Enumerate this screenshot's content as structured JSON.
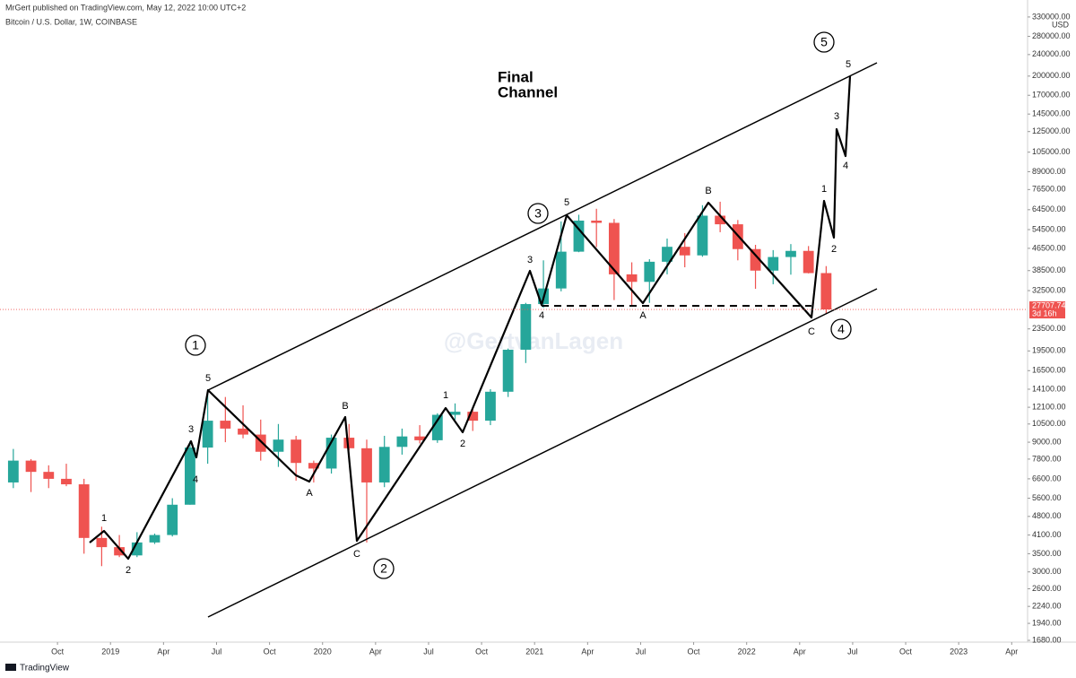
{
  "header": {
    "publisher": "MrGert published on TradingView.com, May 12, 2022 10:00 UTC+2",
    "symbol": "Bitcoin / U.S. Dollar, 1W, COINBASE"
  },
  "chart_data": {
    "type": "candlestick",
    "x": [
      "2018-07",
      "2018-08",
      "2018-09",
      "2018-10",
      "2018-11",
      "2018-12",
      "2019-01",
      "2019-02",
      "2019-03",
      "2019-04",
      "2019-05",
      "2019-06",
      "2019-07",
      "2019-08",
      "2019-09",
      "2019-10",
      "2019-11",
      "2019-12",
      "2020-01",
      "2020-02",
      "2020-03",
      "2020-04",
      "2020-05",
      "2020-06",
      "2020-07",
      "2020-08",
      "2020-09",
      "2020-10",
      "2020-11",
      "2020-12",
      "2021-01",
      "2021-02",
      "2021-03",
      "2021-04",
      "2021-05",
      "2021-06",
      "2021-07",
      "2021-08",
      "2021-09",
      "2021-10",
      "2021-11",
      "2021-12",
      "2022-01",
      "2022-02",
      "2022-03",
      "2022-04",
      "2022-05"
    ],
    "open": [
      6400,
      7700,
      7000,
      6600,
      6300,
      4000,
      3700,
      3450,
      3850,
      4100,
      5300,
      8600,
      10800,
      10100,
      9600,
      8300,
      9200,
      7550,
      7200,
      9350,
      8550,
      6400,
      8650,
      9450,
      9150,
      11350,
      11650,
      10800,
      13800,
      19700,
      29000,
      33100,
      45200,
      58800,
      57700,
      37300,
      35000,
      41500,
      47100,
      43800,
      61300,
      57000,
      46200,
      38500,
      43200,
      45500,
      37700
    ],
    "high": [
      8500,
      7800,
      7400,
      7500,
      6600,
      4400,
      4100,
      4200,
      4150,
      5600,
      9100,
      13900,
      13200,
      12300,
      10900,
      10500,
      9500,
      7700,
      9600,
      10500,
      9200,
      9500,
      10100,
      10400,
      11500,
      12500,
      12100,
      14100,
      19900,
      29300,
      42000,
      58400,
      61800,
      65000,
      59600,
      41300,
      42400,
      50500,
      52900,
      67000,
      69000,
      59100,
      47900,
      45800,
      48200,
      47400,
      40000
    ],
    "low": [
      6100,
      5900,
      6100,
      6200,
      3500,
      3150,
      3400,
      3400,
      3800,
      4050,
      5300,
      7500,
      9000,
      9300,
      7700,
      7300,
      6500,
      6400,
      6900,
      8400,
      3850,
      6150,
      8100,
      8900,
      8950,
      10900,
      9900,
      10400,
      13200,
      17600,
      28100,
      32300,
      45000,
      47000,
      30000,
      28800,
      29300,
      37300,
      39600,
      43300,
      53300,
      42000,
      33000,
      34300,
      37200,
      37600,
      26700
    ],
    "close": [
      7700,
      7000,
      6600,
      6300,
      4000,
      3700,
      3450,
      3850,
      4100,
      5300,
      8600,
      10800,
      10100,
      9600,
      8300,
      9200,
      7550,
      7200,
      9350,
      8550,
      6400,
      8650,
      9450,
      9150,
      11350,
      11650,
      10800,
      13800,
      19700,
      29000,
      33100,
      45200,
      58800,
      57700,
      37300,
      35000,
      41500,
      47100,
      43800,
      61300,
      57000,
      46200,
      38500,
      43200,
      45500,
      37700,
      27707.74
    ],
    "up_color": "#26a69a",
    "down_color": "#ef5350",
    "log_scale": true,
    "ylim": [
      1655,
      381000
    ],
    "yticks": [
      {
        "value": 1680,
        "label": "1680.00"
      },
      {
        "value": 1940,
        "label": "1940.00"
      },
      {
        "value": 2240,
        "label": "2240.00"
      },
      {
        "value": 2600,
        "label": "2600.00"
      },
      {
        "value": 3000,
        "label": "3000.00"
      },
      {
        "value": 3500,
        "label": "3500.00"
      },
      {
        "value": 4100,
        "label": "4100.00"
      },
      {
        "value": 4800,
        "label": "4800.00"
      },
      {
        "value": 5600,
        "label": "5600.00"
      },
      {
        "value": 6600,
        "label": "6600.00"
      },
      {
        "value": 7800,
        "label": "7800.00"
      },
      {
        "value": 9000,
        "label": "9000.00"
      },
      {
        "value": 10500,
        "label": "10500.00"
      },
      {
        "value": 12100,
        "label": "12100.00"
      },
      {
        "value": 14100,
        "label": "14100.00"
      },
      {
        "value": 16500,
        "label": "16500.00"
      },
      {
        "value": 19500,
        "label": "19500.00"
      },
      {
        "value": 23500,
        "label": "23500.00"
      },
      {
        "value": 32500,
        "label": "32500.00"
      },
      {
        "value": 38500,
        "label": "38500.00"
      },
      {
        "value": 46500,
        "label": "46500.00"
      },
      {
        "value": 54500,
        "label": "54500.00"
      },
      {
        "value": 64500,
        "label": "64500.00"
      },
      {
        "value": 76500,
        "label": "76500.00"
      },
      {
        "value": 89000,
        "label": "89000.00"
      },
      {
        "value": 105000,
        "label": "105000.00"
      },
      {
        "value": 125000,
        "label": "125000.00"
      },
      {
        "value": 145000,
        "label": "145000.00"
      },
      {
        "value": 170000,
        "label": "170000.00"
      },
      {
        "value": 200000,
        "label": "200000.00"
      },
      {
        "value": 240000,
        "label": "240000.00"
      },
      {
        "value": 280000,
        "label": "280000.00"
      },
      {
        "value": 330000,
        "label": "330000.00"
      }
    ],
    "y_unit": "USD",
    "xlim": [
      "2018-07",
      "2023-05"
    ],
    "xticks": [
      {
        "value": "2018-10",
        "label": "Oct"
      },
      {
        "value": "2019-01",
        "label": "2019"
      },
      {
        "value": "2019-04",
        "label": "Apr"
      },
      {
        "value": "2019-07",
        "label": "Jul"
      },
      {
        "value": "2019-10",
        "label": "Oct"
      },
      {
        "value": "2020-01",
        "label": "2020"
      },
      {
        "value": "2020-04",
        "label": "Apr"
      },
      {
        "value": "2020-07",
        "label": "Jul"
      },
      {
        "value": "2020-10",
        "label": "Oct"
      },
      {
        "value": "2021-01",
        "label": "2021"
      },
      {
        "value": "2021-04",
        "label": "Apr"
      },
      {
        "value": "2021-07",
        "label": "Jul"
      },
      {
        "value": "2021-10",
        "label": "Oct"
      },
      {
        "value": "2022-01",
        "label": "2022"
      },
      {
        "value": "2022-04",
        "label": "Apr"
      },
      {
        "value": "2022-07",
        "label": "Jul"
      },
      {
        "value": "2022-10",
        "label": "Oct"
      },
      {
        "value": "2023-01",
        "label": "2023"
      },
      {
        "value": "2023-04",
        "label": "Apr"
      }
    ],
    "last_price": 27707.74,
    "countdown": "3d 16h",
    "annotations": {
      "title": [
        "Final",
        "Channel"
      ],
      "waves": [
        "1",
        "2",
        "3",
        "4",
        "5",
        "A",
        "B",
        "C",
        "1",
        "2",
        "3",
        "4",
        "5",
        "A",
        "B",
        "C",
        "1",
        "2",
        "3",
        "4",
        "5"
      ],
      "degrees": [
        "1",
        "2",
        "3",
        "4",
        "5"
      ]
    },
    "watermark": "@GertvanLagen"
  },
  "footer": {
    "brand": "TradingView"
  }
}
